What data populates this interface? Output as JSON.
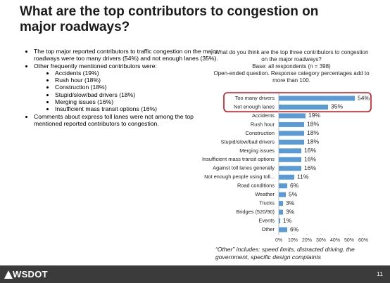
{
  "title": "What are the top contributors to congestion on major roadways?",
  "bullets": [
    {
      "text": "The top major reported contributors to traffic congestion on the major roadways were too many drivers (54%) and not enough lanes (35%)."
    },
    {
      "text": "Other frequently mentioned contributors were:",
      "sub": [
        "Accidents (19%)",
        "Rush hour (18%)",
        "Construction (18%)",
        "Stupid/slow/bad drivers (18%)",
        "Merging issues (16%)",
        "Insufficient mass transit options (16%)"
      ]
    },
    {
      "text": "Comments about express toll lanes were not among the top mentioned reported contributors to congestion."
    }
  ],
  "chart_data": {
    "type": "hbar",
    "title": "What do you think are the top three contributors to congestion on the major roadways?",
    "subtitle": [
      "Base: all respondents (n = 398)",
      "Open-ended question. Response category percentages add to more than 100."
    ],
    "categories": [
      "Too many drivers",
      "Not enough lanes",
      "Accidents",
      "Rush hour",
      "Construction",
      "Stupid/slow/bad drivers",
      "Merging issues",
      "Insufficient mass transit options",
      "Against toll lanes generally",
      "Not enough people using toll...",
      "Road conditions",
      "Weather",
      "Trucks",
      "Bridges (520/90)",
      "Events",
      "Other"
    ],
    "values": [
      54,
      35,
      19,
      18,
      18,
      18,
      16,
      16,
      16,
      11,
      6,
      5,
      3,
      3,
      1,
      6
    ],
    "value_labels": [
      "54%",
      "35%",
      "19%",
      "18%",
      "18%",
      "18%",
      "16%",
      "16%",
      "16%",
      "11%",
      "6%",
      "5%",
      "3%",
      "3%",
      "1%",
      "6%"
    ],
    "color": "#5b9bd5",
    "xlim": [
      0,
      60
    ],
    "xticks": [
      {
        "value": 0,
        "label": "0%"
      },
      {
        "value": 10,
        "label": "10%"
      },
      {
        "value": 20,
        "label": "20%"
      },
      {
        "value": 30,
        "label": "30%"
      },
      {
        "value": 40,
        "label": "40%"
      },
      {
        "value": 50,
        "label": "50%"
      },
      {
        "value": 60,
        "label": "60%"
      }
    ],
    "grid": false,
    "annotation": "“Other” includes: speed limits, distracted driving, the government, specific design complaints"
  },
  "footer": {
    "logo": "WSDOT",
    "page": "11"
  }
}
